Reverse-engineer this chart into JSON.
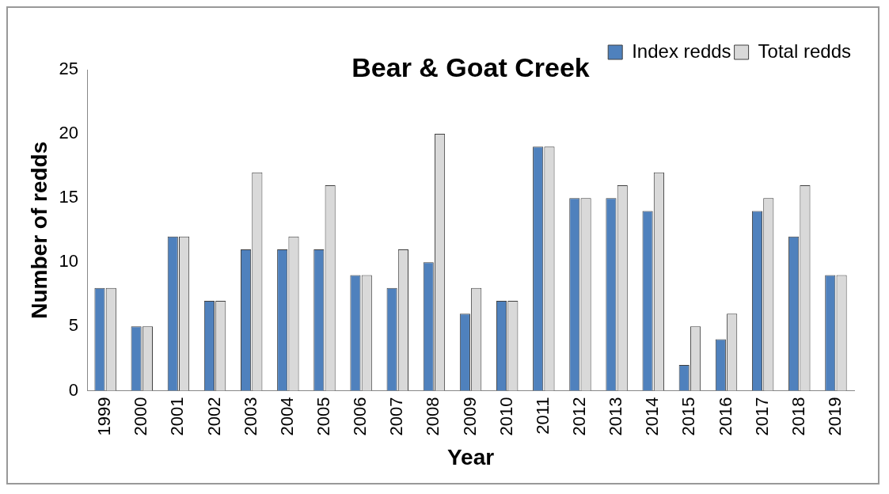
{
  "chart_data": {
    "type": "bar",
    "title": "Bear & Goat Creek",
    "xlabel": "Year",
    "ylabel": "Number of redds",
    "categories": [
      "1999",
      "2000",
      "2001",
      "2002",
      "2003",
      "2004",
      "2005",
      "2006",
      "2007",
      "2008",
      "2009",
      "2010",
      "2011",
      "2012",
      "2013",
      "2014",
      "2015",
      "2016",
      "2017",
      "2018",
      "2019"
    ],
    "series": [
      {
        "name": "Index redds",
        "color": "#4f81bd",
        "values": [
          8,
          5,
          12,
          7,
          11,
          11,
          11,
          9,
          8,
          10,
          6,
          7,
          19,
          15,
          15,
          14,
          2,
          4,
          14,
          12,
          9
        ]
      },
      {
        "name": "Total redds",
        "color": "#d9d9d9",
        "values": [
          8,
          5,
          12,
          7,
          17,
          12,
          16,
          9,
          11,
          20,
          8,
          7,
          19,
          15,
          16,
          17,
          5,
          6,
          15,
          16,
          9
        ]
      }
    ],
    "ylim": [
      0,
      25
    ],
    "yticks": [
      0,
      5,
      10,
      15,
      20,
      25
    ],
    "grid": false,
    "legend": "top right"
  }
}
